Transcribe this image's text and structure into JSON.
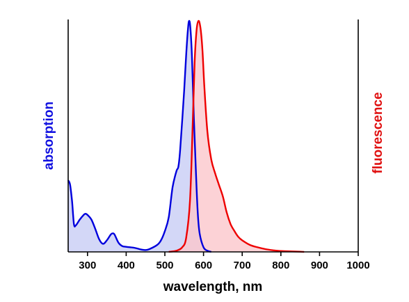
{
  "chart_data": {
    "type": "area",
    "title": "",
    "xlabel": "wavelength, nm",
    "ylabel_left": "absorption",
    "ylabel_right": "fluorescence",
    "xlim": [
      250,
      1000
    ],
    "ylim": [
      0,
      1
    ],
    "x_ticks": [
      300,
      400,
      500,
      600,
      700,
      800,
      900,
      1000
    ],
    "y_ticks_shown": false,
    "grid": false,
    "legend": "none",
    "series": [
      {
        "name": "absorption",
        "color": "#0000dd",
        "fill": "#c8cdf5",
        "axis": "left",
        "points": [
          [
            250,
            0.31
          ],
          [
            255,
            0.29
          ],
          [
            260,
            0.22
          ],
          [
            265,
            0.12
          ],
          [
            270,
            0.115
          ],
          [
            280,
            0.14
          ],
          [
            290,
            0.16
          ],
          [
            295,
            0.165
          ],
          [
            300,
            0.16
          ],
          [
            310,
            0.14
          ],
          [
            320,
            0.1
          ],
          [
            330,
            0.055
          ],
          [
            340,
            0.035
          ],
          [
            350,
            0.05
          ],
          [
            360,
            0.075
          ],
          [
            365,
            0.08
          ],
          [
            370,
            0.075
          ],
          [
            380,
            0.04
          ],
          [
            390,
            0.025
          ],
          [
            400,
            0.022
          ],
          [
            420,
            0.018
          ],
          [
            440,
            0.01
          ],
          [
            450,
            0.008
          ],
          [
            460,
            0.012
          ],
          [
            480,
            0.03
          ],
          [
            490,
            0.05
          ],
          [
            500,
            0.09
          ],
          [
            510,
            0.15
          ],
          [
            520,
            0.28
          ],
          [
            530,
            0.35
          ],
          [
            535,
            0.37
          ],
          [
            540,
            0.45
          ],
          [
            550,
            0.7
          ],
          [
            555,
            0.85
          ],
          [
            560,
            0.97
          ],
          [
            563,
            1.0
          ],
          [
            566,
            0.97
          ],
          [
            570,
            0.85
          ],
          [
            575,
            0.58
          ],
          [
            580,
            0.36
          ],
          [
            585,
            0.17
          ],
          [
            590,
            0.08
          ],
          [
            600,
            0.02
          ],
          [
            610,
            0.005
          ],
          [
            620,
            0.0
          ]
        ]
      },
      {
        "name": "fluorescence",
        "color": "#ee0000",
        "fill": "#fbc7cc",
        "axis": "right",
        "points": [
          [
            510,
            0.0
          ],
          [
            530,
            0.005
          ],
          [
            545,
            0.02
          ],
          [
            555,
            0.06
          ],
          [
            565,
            0.22
          ],
          [
            572,
            0.55
          ],
          [
            577,
            0.82
          ],
          [
            582,
            0.96
          ],
          [
            587,
            1.0
          ],
          [
            592,
            0.97
          ],
          [
            597,
            0.88
          ],
          [
            602,
            0.72
          ],
          [
            610,
            0.52
          ],
          [
            620,
            0.4
          ],
          [
            630,
            0.34
          ],
          [
            640,
            0.29
          ],
          [
            650,
            0.24
          ],
          [
            660,
            0.17
          ],
          [
            670,
            0.12
          ],
          [
            680,
            0.09
          ],
          [
            690,
            0.065
          ],
          [
            700,
            0.05
          ],
          [
            720,
            0.03
          ],
          [
            740,
            0.02
          ],
          [
            760,
            0.012
          ],
          [
            780,
            0.007
          ],
          [
            800,
            0.004
          ],
          [
            830,
            0.002
          ],
          [
            850,
            0.001
          ],
          [
            860,
            0.0
          ]
        ]
      }
    ]
  }
}
